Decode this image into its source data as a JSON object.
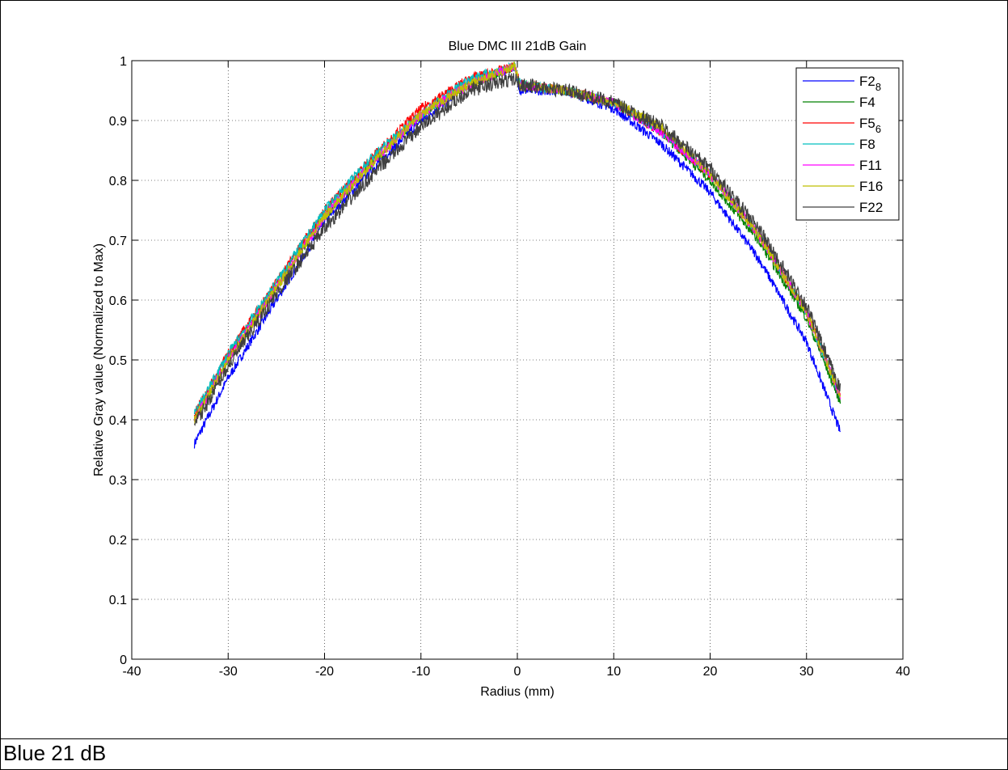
{
  "chart_data": {
    "type": "line",
    "title": "Blue DMC III 21dB Gain",
    "xlabel": "Radius (mm)",
    "ylabel": "Relative Gray value (Normalized to Max)",
    "xlim": [
      -40,
      40
    ],
    "ylim": [
      0,
      1
    ],
    "x_ticks": [
      "-40",
      "-30",
      "-20",
      "-10",
      "0",
      "10",
      "20",
      "30",
      "40"
    ],
    "y_ticks": [
      "0",
      "0.1",
      "0.2",
      "0.3",
      "0.4",
      "0.5",
      "0.6",
      "0.7",
      "0.8",
      "0.9",
      "1"
    ],
    "grid": true,
    "legend_position": "top-right",
    "series": [
      {
        "name": "F2",
        "name_subscript": "8",
        "color": "#0000ff",
        "x": [
          -33.5,
          -30,
          -25,
          -20,
          -15,
          -10,
          -5,
          -0.3,
          0.3,
          5,
          10,
          15,
          20,
          25,
          30,
          33.5
        ],
        "y": [
          0.36,
          0.47,
          0.6,
          0.73,
          0.82,
          0.9,
          0.96,
          0.99,
          0.95,
          0.95,
          0.92,
          0.86,
          0.78,
          0.67,
          0.53,
          0.38
        ]
      },
      {
        "name": "F4",
        "color": "#008000",
        "x": [
          -33.5,
          -30,
          -25,
          -20,
          -15,
          -10,
          -5,
          -0.3,
          0.3,
          5,
          10,
          15,
          20,
          25,
          30,
          33.5
        ],
        "y": [
          0.4,
          0.5,
          0.62,
          0.74,
          0.83,
          0.91,
          0.96,
          0.99,
          0.96,
          0.95,
          0.93,
          0.88,
          0.8,
          0.7,
          0.57,
          0.43
        ]
      },
      {
        "name": "F5",
        "name_subscript": "6",
        "color": "#ff0000",
        "x": [
          -33.5,
          -30,
          -25,
          -20,
          -15,
          -10,
          -5,
          -0.3,
          0.3,
          5,
          10,
          15,
          20,
          25,
          30,
          33.5
        ],
        "y": [
          0.41,
          0.51,
          0.63,
          0.75,
          0.84,
          0.92,
          0.97,
          0.99,
          0.96,
          0.95,
          0.93,
          0.88,
          0.81,
          0.71,
          0.58,
          0.44
        ]
      },
      {
        "name": "F8",
        "color": "#00bfbf",
        "x": [
          -33.5,
          -30,
          -25,
          -20,
          -15,
          -10,
          -5,
          -0.3,
          0.3,
          5,
          10,
          15,
          20,
          25,
          30,
          33.5
        ],
        "y": [
          0.41,
          0.51,
          0.63,
          0.75,
          0.84,
          0.91,
          0.97,
          0.99,
          0.96,
          0.95,
          0.93,
          0.88,
          0.81,
          0.71,
          0.58,
          0.44
        ]
      },
      {
        "name": "F11",
        "color": "#ff00ff",
        "x": [
          -33.5,
          -30,
          -25,
          -20,
          -15,
          -10,
          -5,
          -0.3,
          0.3,
          5,
          10,
          15,
          20,
          25,
          30,
          33.5
        ],
        "y": [
          0.4,
          0.5,
          0.62,
          0.74,
          0.83,
          0.91,
          0.96,
          0.99,
          0.96,
          0.95,
          0.93,
          0.88,
          0.81,
          0.71,
          0.58,
          0.44
        ]
      },
      {
        "name": "F16",
        "color": "#bfbf00",
        "x": [
          -33.5,
          -30,
          -25,
          -20,
          -15,
          -10,
          -5,
          -0.3,
          0.3,
          5,
          10,
          15,
          20,
          25,
          30,
          33.5
        ],
        "y": [
          0.4,
          0.5,
          0.62,
          0.74,
          0.83,
          0.91,
          0.96,
          0.99,
          0.96,
          0.95,
          0.93,
          0.89,
          0.81,
          0.71,
          0.58,
          0.44
        ]
      },
      {
        "name": "F22",
        "color": "#404040",
        "x": [
          -33.5,
          -30,
          -25,
          -20,
          -15,
          -10,
          -5,
          -0.3,
          0.3,
          5,
          10,
          15,
          20,
          25,
          30,
          33.5
        ],
        "y": [
          0.39,
          0.49,
          0.61,
          0.72,
          0.81,
          0.89,
          0.95,
          0.97,
          0.96,
          0.95,
          0.93,
          0.89,
          0.82,
          0.72,
          0.59,
          0.45
        ]
      }
    ]
  },
  "caption": "Blue 21 dB"
}
